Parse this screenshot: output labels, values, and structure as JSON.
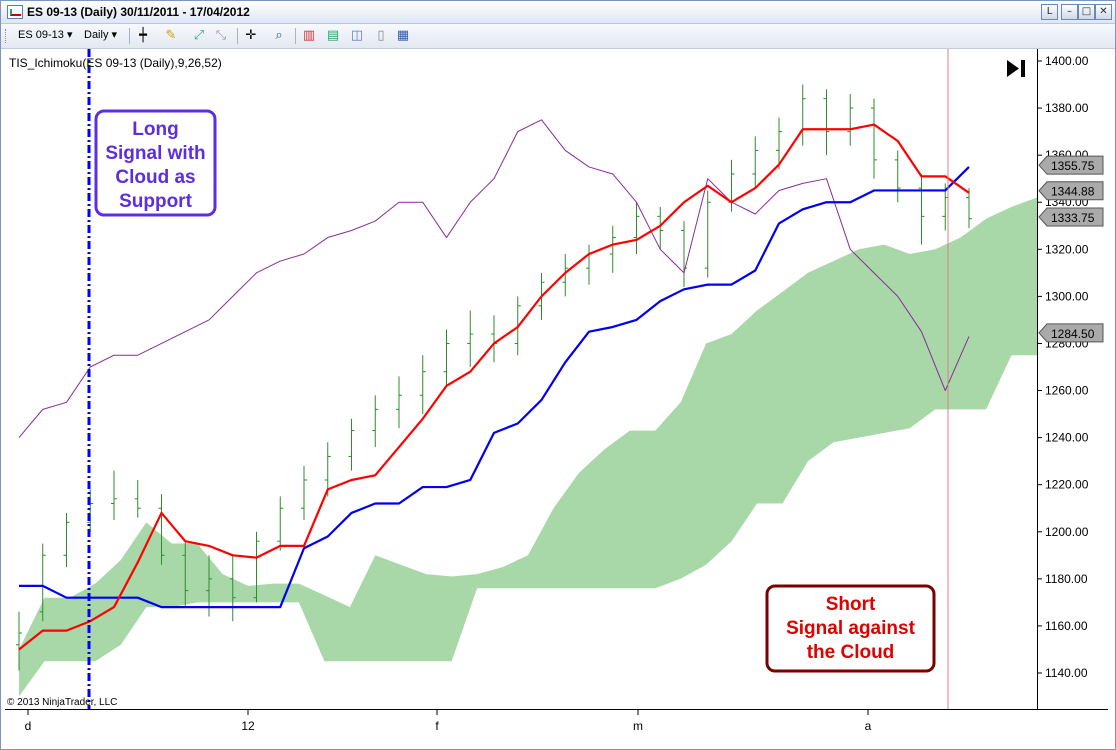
{
  "window": {
    "title": "ES 09-13 (Daily)  30/11/2011 - 17/04/2012",
    "buttons": [
      "L",
      "–",
      "□",
      "✕"
    ]
  },
  "toolbar": {
    "instrument": "ES 09-13",
    "interval": "Daily"
  },
  "indicator_label": "TIS_Ichimoku(ES 09-13 (Daily),9,26,52)",
  "copyright": "© 2013 NinjaTrader, LLC",
  "annotations": {
    "long": [
      "Long",
      "Signal with",
      "Cloud as",
      "Support"
    ],
    "short": [
      "Short",
      "Signal against",
      "the Cloud"
    ]
  },
  "colors": {
    "tenkan": "#ff0000",
    "kijun": "#0000ee",
    "chikou": "#8b2a9a",
    "cloud": "#a8d8a8",
    "bars": "#2e8b2e",
    "long_box": "#5b2ee0",
    "short_box": "#7a0000",
    "long_line": "#0000ee",
    "short_line": "#e08080"
  },
  "chart_data": {
    "type": "line",
    "title": "TIS_Ichimoku(ES 09-13 (Daily),9,26,52)",
    "ylim": [
      1130,
      1405
    ],
    "yticks": [
      1140,
      1160,
      1180,
      1200,
      1220,
      1240,
      1260,
      1280,
      1300,
      1320,
      1340,
      1360,
      1380,
      1400
    ],
    "x_tick_labels": [
      "d",
      "12",
      "f",
      "m",
      "a"
    ],
    "price_labels": [
      1355.75,
      1344.88,
      1333.75,
      1284.5
    ],
    "series": [
      {
        "name": "",
        "role": "tenkan",
        "values": [
          1150,
          1158,
          1158,
          1162,
          1168,
          1187,
          1208,
          1196,
          1194,
          1190,
          1189,
          1194,
          1194,
          1218,
          1222,
          1224,
          1236,
          1248,
          1262,
          1268,
          1280,
          1287,
          1300,
          1310,
          1318,
          1322,
          1324,
          1330,
          1340,
          1347,
          1340,
          1346,
          1356,
          1371,
          1371,
          1371,
          1373,
          1366,
          1351,
          1351,
          1344
        ]
      },
      {
        "name": "",
        "role": "kijun",
        "values": [
          1177,
          1177,
          1172,
          1172,
          1172,
          1172,
          1168,
          1168,
          1168,
          1168,
          1168,
          1168,
          1193,
          1198,
          1208,
          1212,
          1212,
          1219,
          1219,
          1222,
          1242,
          1246,
          1256,
          1272,
          1285,
          1287,
          1290,
          1298,
          1303,
          1305,
          1305,
          1311,
          1331,
          1337,
          1340,
          1340,
          1345,
          1345,
          1345,
          1345,
          1355
        ]
      },
      {
        "name": "",
        "role": "chikou",
        "values": [
          1240,
          1252,
          1255,
          1270,
          1275,
          1275,
          1280,
          1285,
          1290,
          1300,
          1310,
          1315,
          1318,
          1325,
          1328,
          1332,
          1340,
          1340,
          1325,
          1340,
          1350,
          1370,
          1375,
          1362,
          1355,
          1352,
          1340,
          1320,
          1310,
          1350,
          1340,
          1335,
          1345,
          1348,
          1350,
          1320,
          1310,
          1300,
          1285,
          1260,
          1283
        ]
      },
      {
        "name": "",
        "role": "senkou_a",
        "values": [
          1150,
          1172,
          1172,
          1178,
          1188,
          1204,
          1195,
          1195,
          1182,
          1177,
          1178,
          1178,
          1173,
          1168,
          1190,
          1186,
          1182,
          1181,
          1182,
          1185,
          1190,
          1210,
          1225,
          1235,
          1243,
          1243,
          1255,
          1280,
          1284,
          1294,
          1302,
          1310,
          1315,
          1320,
          1322,
          1318,
          1320,
          1325,
          1333,
          1338,
          1342
        ]
      },
      {
        "name": "",
        "role": "senkou_b",
        "values": [
          1130,
          1145,
          1145,
          1145,
          1152,
          1168,
          1168,
          1170,
          1170,
          1170,
          1170,
          1170,
          1145,
          1145,
          1145,
          1145,
          1145,
          1145,
          1176,
          1176,
          1176,
          1176,
          1176,
          1176,
          1176,
          1176,
          1180,
          1186,
          1196,
          1212,
          1212,
          1230,
          1238,
          1240,
          1242,
          1244,
          1252,
          1252,
          1252,
          1275,
          1275
        ]
      }
    ],
    "ohlc": [
      [
        1152,
        1166,
        1141,
        1157
      ],
      [
        1166,
        1195,
        1162,
        1190
      ],
      [
        1190,
        1208,
        1185,
        1204
      ],
      [
        1204,
        1218,
        1200,
        1212
      ],
      [
        1212,
        1226,
        1205,
        1214
      ],
      [
        1214,
        1222,
        1206,
        1210
      ],
      [
        1210,
        1216,
        1186,
        1190
      ],
      [
        1190,
        1196,
        1168,
        1175
      ],
      [
        1175,
        1190,
        1164,
        1180
      ],
      [
        1180,
        1190,
        1162,
        1172
      ],
      [
        1172,
        1200,
        1170,
        1196
      ],
      [
        1196,
        1215,
        1192,
        1210
      ],
      [
        1210,
        1228,
        1205,
        1222
      ],
      [
        1222,
        1238,
        1215,
        1232
      ],
      [
        1232,
        1248,
        1226,
        1243
      ],
      [
        1243,
        1258,
        1236,
        1252
      ],
      [
        1252,
        1266,
        1244,
        1258
      ],
      [
        1258,
        1275,
        1250,
        1268
      ],
      [
        1268,
        1286,
        1262,
        1280
      ],
      [
        1280,
        1294,
        1270,
        1284
      ],
      [
        1284,
        1292,
        1272,
        1280
      ],
      [
        1280,
        1300,
        1275,
        1296
      ],
      [
        1296,
        1310,
        1290,
        1306
      ],
      [
        1306,
        1318,
        1300,
        1312
      ],
      [
        1312,
        1322,
        1305,
        1318
      ],
      [
        1318,
        1330,
        1310,
        1325
      ],
      [
        1325,
        1340,
        1318,
        1334
      ],
      [
        1334,
        1338,
        1320,
        1328
      ],
      [
        1328,
        1332,
        1304,
        1312
      ],
      [
        1312,
        1345,
        1308,
        1340
      ],
      [
        1340,
        1358,
        1336,
        1352
      ],
      [
        1352,
        1368,
        1346,
        1362
      ],
      [
        1362,
        1376,
        1354,
        1370
      ],
      [
        1370,
        1390,
        1364,
        1384
      ],
      [
        1384,
        1388,
        1360,
        1370
      ],
      [
        1370,
        1386,
        1364,
        1380
      ],
      [
        1380,
        1384,
        1350,
        1358
      ],
      [
        1358,
        1362,
        1340,
        1346
      ],
      [
        1346,
        1352,
        1322,
        1334
      ],
      [
        1334,
        1348,
        1328,
        1342
      ],
      [
        1342,
        1346,
        1329,
        1333
      ]
    ]
  }
}
